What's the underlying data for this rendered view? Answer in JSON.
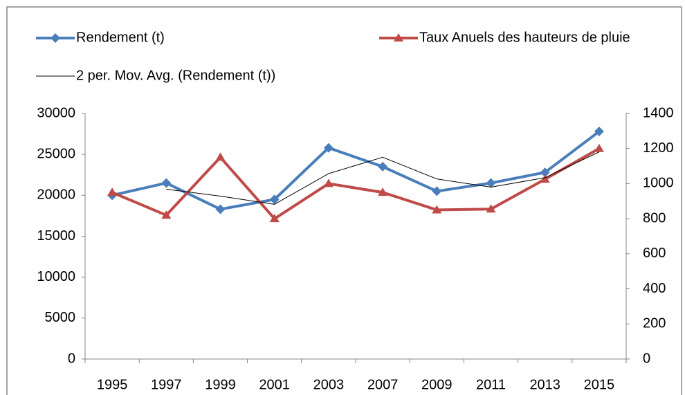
{
  "chart_data": {
    "type": "line",
    "categories": [
      "1995",
      "1997",
      "1999",
      "2001",
      "2003",
      "2007",
      "2009",
      "2011",
      "2013",
      "2015"
    ],
    "series": [
      {
        "name": "Rendement (t)",
        "color": "#4a7ebb",
        "marker": "diamond",
        "width": 4,
        "values": [
          20000,
          21500,
          18300,
          19500,
          25800,
          23500,
          20500,
          21500,
          22800,
          27800
        ]
      },
      {
        "name": "Taux Anuels des hauteurs de pluie",
        "color": "#be4b48",
        "marker": "triangle",
        "width": 4,
        "axis": "y2",
        "values": [
          950,
          820,
          1150,
          800,
          1000,
          950,
          850,
          855,
          1025,
          1200
        ]
      },
      {
        "name": "2 per. Mov. Avg. (Rendement (t))",
        "color": "#000000",
        "width": 1,
        "values": [
          null,
          20750,
          19900,
          18900,
          22650,
          24650,
          22000,
          21000,
          22150,
          25300
        ]
      }
    ],
    "ylim": [
      0,
      30000
    ],
    "yticks": [
      0,
      5000,
      10000,
      15000,
      20000,
      25000,
      30000
    ],
    "y2lim": [
      0,
      1400
    ],
    "y2ticks": [
      0,
      200,
      400,
      600,
      800,
      1000,
      1200,
      1400
    ],
    "grid": false
  }
}
